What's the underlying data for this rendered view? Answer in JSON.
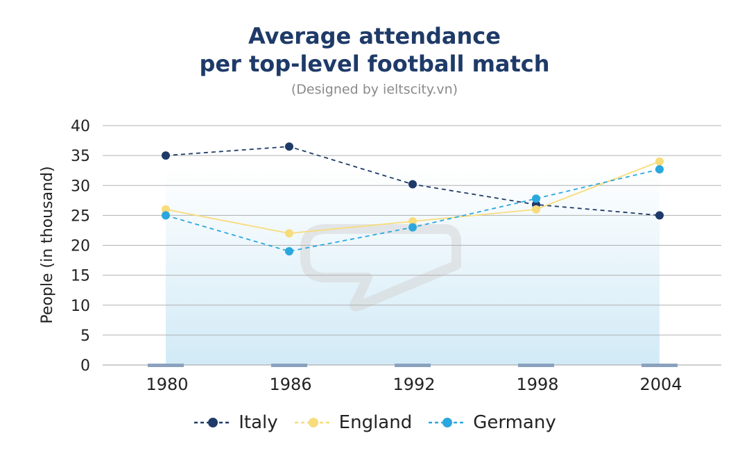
{
  "chart_data": {
    "type": "line",
    "title_line1": "Average attendance",
    "title_line2": "per top-level football match",
    "subtitle": "(Designed by ieltscity.vn)",
    "xlabel": "",
    "ylabel": "People (in thousand)",
    "categories": [
      "1980",
      "1986",
      "1992",
      "1998",
      "2004"
    ],
    "ylim": [
      0,
      40
    ],
    "yticks": [
      0,
      5,
      10,
      15,
      20,
      25,
      30,
      35,
      40
    ],
    "grid": true,
    "legend_position": "bottom",
    "series": [
      {
        "name": "Italy",
        "values": [
          35,
          36.5,
          30.2,
          26.8,
          25
        ],
        "color": "#1e3a68",
        "dash": "dashed"
      },
      {
        "name": "England",
        "values": [
          26,
          22,
          24,
          26,
          34
        ],
        "color": "#f7dc7c",
        "dash": "solid"
      },
      {
        "name": "Germany",
        "values": [
          25,
          19,
          23,
          27.8,
          32.7
        ],
        "color": "#2aa7de",
        "dash": "dashed"
      }
    ]
  },
  "colors": {
    "title": "#1e3a68",
    "grid": "#b0b0b0",
    "area": "#cfe9f6"
  }
}
